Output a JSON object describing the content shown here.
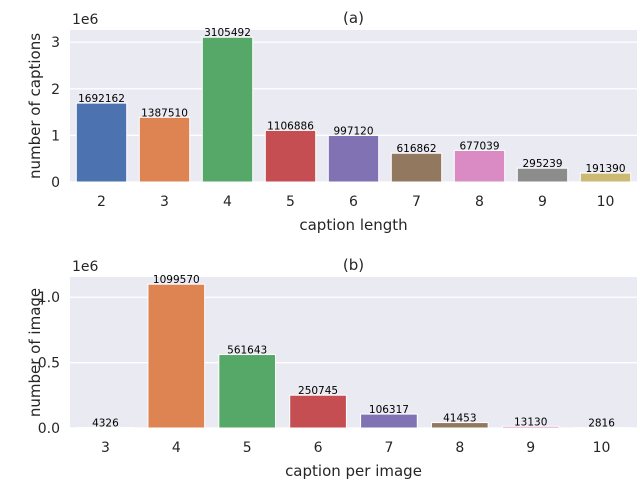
{
  "chart_data": [
    {
      "type": "bar",
      "title": "(a)",
      "xlabel": "caption length",
      "ylabel": "number of captions",
      "y_offset_label": "1e6",
      "categories": [
        "2",
        "3",
        "4",
        "5",
        "6",
        "7",
        "8",
        "9",
        "10"
      ],
      "values": [
        1692162,
        1387510,
        3105492,
        1106886,
        997120,
        616862,
        677039,
        295239,
        191390
      ],
      "value_labels": [
        "1692162",
        "1387510",
        "3105492",
        "1106886",
        "997120",
        "616862",
        "677039",
        "295239",
        "191390"
      ],
      "yticks": [
        0,
        1000000,
        2000000,
        3000000
      ],
      "ytick_labels": [
        "0",
        "1",
        "2",
        "3"
      ],
      "ylim": [
        0,
        3260767
      ],
      "grid": true,
      "colors": [
        "#4c72b0",
        "#dd8452",
        "#55a868",
        "#c44e52",
        "#8172b3",
        "#937860",
        "#da8bc3",
        "#8c8c8c",
        "#ccb974"
      ]
    },
    {
      "type": "bar",
      "title": "(b)",
      "xlabel": "caption per image",
      "ylabel": "number of image",
      "y_offset_label": "1e6",
      "categories": [
        "3",
        "4",
        "5",
        "6",
        "7",
        "8",
        "9",
        "10"
      ],
      "values": [
        4326,
        1099570,
        561643,
        250745,
        106317,
        41453,
        13130,
        2816
      ],
      "value_labels": [
        "4326",
        "1099570",
        "561643",
        "250745",
        "106317",
        "41453",
        "13130",
        "2816"
      ],
      "yticks": [
        0,
        500000,
        1000000
      ],
      "ytick_labels": [
        "0.0",
        "0.5",
        "1.0"
      ],
      "ylim": [
        0,
        1154548
      ],
      "grid": true,
      "colors": [
        "#4c72b0",
        "#dd8452",
        "#55a868",
        "#c44e52",
        "#8172b3",
        "#937860",
        "#da8bc3",
        "#8c8c8c"
      ]
    }
  ]
}
